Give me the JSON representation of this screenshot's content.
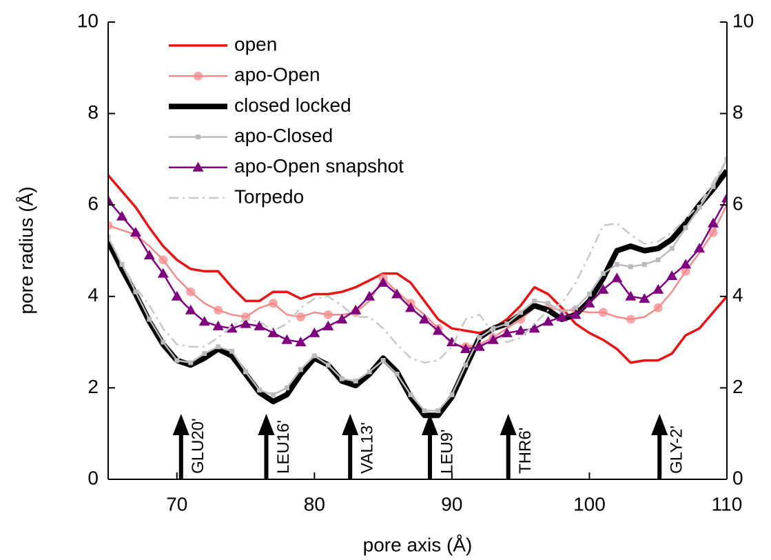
{
  "chart_data": {
    "type": "line",
    "xlabel": "pore axis (Å)",
    "ylabel": "pore radius (Å)",
    "xlim": [
      65,
      110
    ],
    "xticks": [
      70,
      80,
      90,
      100,
      110
    ],
    "ylim": [
      0,
      10
    ],
    "yticks": [
      0,
      2,
      4,
      6,
      8,
      10
    ],
    "y2lim": [
      0,
      10
    ],
    "y2ticks": [
      0,
      2,
      4,
      6,
      8,
      10
    ],
    "legend": "upper left",
    "x": [
      65,
      66,
      67,
      68,
      69,
      70,
      71,
      72,
      73,
      74,
      75,
      76,
      77,
      78,
      79,
      80,
      81,
      82,
      83,
      84,
      85,
      86,
      87,
      88,
      89,
      90,
      91,
      92,
      93,
      94,
      95,
      96,
      97,
      98,
      99,
      100,
      101,
      102,
      103,
      104,
      105,
      106,
      107,
      108,
      109,
      110
    ],
    "series": [
      {
        "name": "open",
        "color": "#ee1111",
        "width": 3.5,
        "marker": "none",
        "dash": "solid",
        "values": [
          6.65,
          6.3,
          5.95,
          5.5,
          5.1,
          4.8,
          4.6,
          4.55,
          4.55,
          4.2,
          3.9,
          3.9,
          4.1,
          4.1,
          3.95,
          4.05,
          4.05,
          4.1,
          4.2,
          4.35,
          4.5,
          4.5,
          4.3,
          3.9,
          3.5,
          3.3,
          3.25,
          3.2,
          3.3,
          3.5,
          3.8,
          4.2,
          4.05,
          3.75,
          3.4,
          3.2,
          3.05,
          2.85,
          2.55,
          2.6,
          2.6,
          2.75,
          3.15,
          3.3,
          3.65,
          4.0
        ]
      },
      {
        "name": "apo-Open",
        "color": "#f58a8a",
        "width": 2.5,
        "marker": "circle",
        "dash": "solid",
        "values": [
          5.55,
          5.45,
          5.35,
          5.1,
          4.8,
          4.4,
          4.1,
          3.85,
          3.7,
          3.6,
          3.55,
          3.75,
          3.85,
          3.6,
          3.55,
          3.65,
          3.6,
          3.6,
          3.65,
          3.9,
          4.4,
          4.1,
          3.85,
          3.6,
          3.3,
          2.95,
          2.9,
          2.95,
          3.1,
          3.3,
          3.5,
          3.75,
          3.75,
          3.7,
          3.7,
          3.65,
          3.65,
          3.55,
          3.5,
          3.55,
          3.75,
          4.1,
          4.55,
          4.95,
          5.4,
          6.0
        ]
      },
      {
        "name": "closed locked",
        "color": "#000000",
        "width": 8,
        "marker": "none",
        "dash": "solid",
        "values": [
          5.2,
          4.6,
          4.05,
          3.45,
          2.95,
          2.6,
          2.5,
          2.65,
          2.85,
          2.7,
          2.3,
          1.9,
          1.7,
          1.85,
          2.3,
          2.65,
          2.5,
          2.15,
          2.05,
          2.3,
          2.65,
          2.35,
          1.8,
          1.4,
          1.4,
          1.8,
          2.45,
          3.1,
          3.3,
          3.4,
          3.6,
          3.8,
          3.7,
          3.5,
          3.6,
          3.9,
          4.4,
          5.0,
          5.1,
          5.0,
          5.05,
          5.25,
          5.6,
          6.0,
          6.35,
          6.75
        ]
      },
      {
        "name": "apo-Closed",
        "color": "#bbbbbb",
        "width": 2.5,
        "marker": "square",
        "dash": "solid",
        "values": [
          5.3,
          4.7,
          4.1,
          3.5,
          3.0,
          2.6,
          2.55,
          2.75,
          2.9,
          2.8,
          2.35,
          1.95,
          1.85,
          2.0,
          2.4,
          2.7,
          2.5,
          2.2,
          2.15,
          2.35,
          2.6,
          2.3,
          1.85,
          1.5,
          1.5,
          1.85,
          2.5,
          3.1,
          3.3,
          3.4,
          3.65,
          3.9,
          3.85,
          3.65,
          3.75,
          4.05,
          4.5,
          4.7,
          4.65,
          4.7,
          4.8,
          5.05,
          5.5,
          5.95,
          6.4,
          7.0
        ]
      },
      {
        "name": "apo-Open snapshot",
        "color": "#800080",
        "width": 2.5,
        "marker": "triangle",
        "dash": "solid",
        "values": [
          6.1,
          5.75,
          5.4,
          4.9,
          4.5,
          4.0,
          3.7,
          3.45,
          3.35,
          3.3,
          3.4,
          3.35,
          3.2,
          3.05,
          3.0,
          3.2,
          3.35,
          3.5,
          3.7,
          4.0,
          4.3,
          4.05,
          3.75,
          3.5,
          3.25,
          3.0,
          2.85,
          2.9,
          3.05,
          3.2,
          3.25,
          3.3,
          3.45,
          3.55,
          3.6,
          3.85,
          4.15,
          4.4,
          4.0,
          3.95,
          4.15,
          4.45,
          4.7,
          5.05,
          5.6,
          6.15
        ]
      },
      {
        "name": "Torpedo",
        "color": "#c8c8c8",
        "width": 2.5,
        "marker": "none",
        "dash": "dashdot",
        "values": [
          5.3,
          4.7,
          4.2,
          3.8,
          3.3,
          2.95,
          2.9,
          2.9,
          3.1,
          3.35,
          3.5,
          3.45,
          3.25,
          3.4,
          3.75,
          3.95,
          4.0,
          3.8,
          3.55,
          3.55,
          3.3,
          2.95,
          2.65,
          2.55,
          2.6,
          2.9,
          3.5,
          3.6,
          3.2,
          3.0,
          3.1,
          3.4,
          3.7,
          3.85,
          4.3,
          4.9,
          5.55,
          5.6,
          5.35,
          5.15,
          5.2,
          5.4,
          5.7,
          6.0,
          6.5,
          7.0
        ]
      }
    ],
    "annotations": [
      {
        "text": "GLU20'",
        "x": 70.3
      },
      {
        "text": "LEU16'",
        "x": 76.5
      },
      {
        "text": "VAL13'",
        "x": 82.6
      },
      {
        "text": "LEU9'",
        "x": 88.4
      },
      {
        "text": "THR6'",
        "x": 94.1
      },
      {
        "text": "GLY-2'",
        "x": 105.1
      }
    ]
  }
}
